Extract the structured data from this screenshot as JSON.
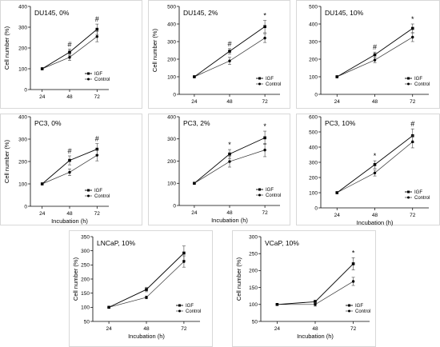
{
  "chart_data": [
    {
      "type": "line",
      "title": "DU145, 0%",
      "xlabel": "",
      "ylabel": "Cell number (%)",
      "categories": [
        "24",
        "48",
        "72"
      ],
      "ylim": [
        0,
        400
      ],
      "yticks": [
        0,
        100,
        200,
        300,
        400
      ],
      "series": [
        {
          "name": "IGF",
          "marker": "square",
          "values": [
            100,
            180,
            290
          ],
          "errors": [
            0,
            15,
            25
          ]
        },
        {
          "name": "Control",
          "marker": "circle",
          "values": [
            100,
            155,
            255
          ],
          "errors": [
            0,
            15,
            25
          ]
        }
      ],
      "annotations": [
        {
          "category": "48",
          "text": "#"
        },
        {
          "category": "72",
          "text": "#"
        }
      ],
      "legend": "bottom-right"
    },
    {
      "type": "line",
      "title": "DU145, 2%",
      "xlabel": "",
      "ylabel": "Cell number (%)",
      "categories": [
        "24",
        "48",
        "72"
      ],
      "ylim": [
        0,
        500
      ],
      "yticks": [
        0,
        100,
        200,
        300,
        400,
        500
      ],
      "series": [
        {
          "name": "IGF",
          "marker": "square",
          "values": [
            100,
            245,
            385
          ],
          "errors": [
            0,
            15,
            35
          ]
        },
        {
          "name": "Control",
          "marker": "circle",
          "values": [
            100,
            190,
            320
          ],
          "errors": [
            0,
            20,
            25
          ]
        }
      ],
      "annotations": [
        {
          "category": "48",
          "text": "#"
        },
        {
          "category": "72",
          "text": "*"
        }
      ],
      "legend": "bottom-right"
    },
    {
      "type": "line",
      "title": "DU145, 10%",
      "xlabel": "",
      "ylabel": "",
      "categories": [
        "24",
        "48",
        "72"
      ],
      "ylim": [
        0,
        500
      ],
      "yticks": [
        0,
        100,
        200,
        300,
        400,
        500
      ],
      "series": [
        {
          "name": "IGF",
          "marker": "square",
          "values": [
            100,
            225,
            375
          ],
          "errors": [
            0,
            15,
            25
          ]
        },
        {
          "name": "Control",
          "marker": "circle",
          "values": [
            100,
            195,
            325
          ],
          "errors": [
            0,
            15,
            25
          ]
        }
      ],
      "annotations": [
        {
          "category": "48",
          "text": "#"
        },
        {
          "category": "72",
          "text": "*"
        }
      ],
      "legend": "bottom-right"
    },
    {
      "type": "line",
      "title": "PC3, 0%",
      "xlabel": "Incubation (h)",
      "ylabel": "Cell number (%)",
      "categories": [
        "24",
        "48",
        "72"
      ],
      "ylim": [
        0,
        400
      ],
      "yticks": [
        0,
        100,
        200,
        300,
        400
      ],
      "series": [
        {
          "name": "IGF",
          "marker": "square",
          "values": [
            100,
            205,
            255
          ],
          "errors": [
            0,
            20,
            25
          ]
        },
        {
          "name": "Control",
          "marker": "circle",
          "values": [
            100,
            152,
            228
          ],
          "errors": [
            0,
            15,
            25
          ]
        }
      ],
      "annotations": [
        {
          "category": "48",
          "text": "#"
        },
        {
          "category": "72",
          "text": "#"
        }
      ],
      "legend": "bottom-right"
    },
    {
      "type": "line",
      "title": "PC3, 2%",
      "xlabel": "Incubation (h)",
      "ylabel": "",
      "categories": [
        "24",
        "48",
        "72"
      ],
      "ylim": [
        0,
        400
      ],
      "yticks": [
        0,
        100,
        200,
        300,
        400
      ],
      "series": [
        {
          "name": "IGF",
          "marker": "square",
          "values": [
            100,
            232,
            305
          ],
          "errors": [
            0,
            20,
            30
          ]
        },
        {
          "name": "Control",
          "marker": "circle",
          "values": [
            100,
            198,
            250
          ],
          "errors": [
            0,
            25,
            30
          ]
        }
      ],
      "annotations": [
        {
          "category": "48",
          "text": "*"
        },
        {
          "category": "72",
          "text": "*"
        }
      ],
      "legend": "bottom-right"
    },
    {
      "type": "line",
      "title": "PC3, 10%",
      "xlabel": "Incubation (h)",
      "ylabel": "",
      "categories": [
        "24",
        "48",
        "72"
      ],
      "ylim": [
        0,
        600
      ],
      "yticks": [
        0,
        100,
        200,
        300,
        400,
        500,
        600
      ],
      "series": [
        {
          "name": "IGF",
          "marker": "square",
          "values": [
            100,
            285,
            475
          ],
          "errors": [
            0,
            25,
            45
          ]
        },
        {
          "name": "Control",
          "marker": "circle",
          "values": [
            100,
            230,
            435
          ],
          "errors": [
            0,
            20,
            40
          ]
        }
      ],
      "annotations": [
        {
          "category": "48",
          "text": "*"
        },
        {
          "category": "72",
          "text": "#"
        }
      ],
      "legend": "bottom-right"
    },
    {
      "type": "line",
      "title": "LNCaP, 10%",
      "xlabel": "Incubation (h)",
      "ylabel": "Cell number (%)",
      "categories": [
        "24",
        "48",
        "72"
      ],
      "ylim": [
        50,
        350
      ],
      "yticks": [
        50,
        100,
        150,
        200,
        250,
        300,
        350
      ],
      "series": [
        {
          "name": "IGF",
          "marker": "square",
          "values": [
            100,
            163,
            292
          ],
          "errors": [
            0,
            8,
            25
          ]
        },
        {
          "name": "Control",
          "marker": "circle",
          "values": [
            100,
            135,
            262
          ],
          "errors": [
            0,
            5,
            20
          ]
        }
      ],
      "annotations": [],
      "legend": "bottom-right"
    },
    {
      "type": "line",
      "title": "VCaP, 10%",
      "xlabel": "Incubation (h)",
      "ylabel": "Cell number (%)",
      "categories": [
        "24",
        "48",
        "72"
      ],
      "ylim": [
        50,
        300
      ],
      "yticks": [
        50,
        100,
        150,
        200,
        250,
        300
      ],
      "series": [
        {
          "name": "IGF",
          "marker": "square",
          "values": [
            100,
            108,
            220
          ],
          "errors": [
            0,
            5,
            18
          ]
        },
        {
          "name": "Control",
          "marker": "circle",
          "values": [
            100,
            100,
            168
          ],
          "errors": [
            0,
            5,
            12
          ]
        }
      ],
      "annotations": [
        {
          "category": "72",
          "text": "*"
        }
      ],
      "legend": "bottom-right"
    }
  ]
}
